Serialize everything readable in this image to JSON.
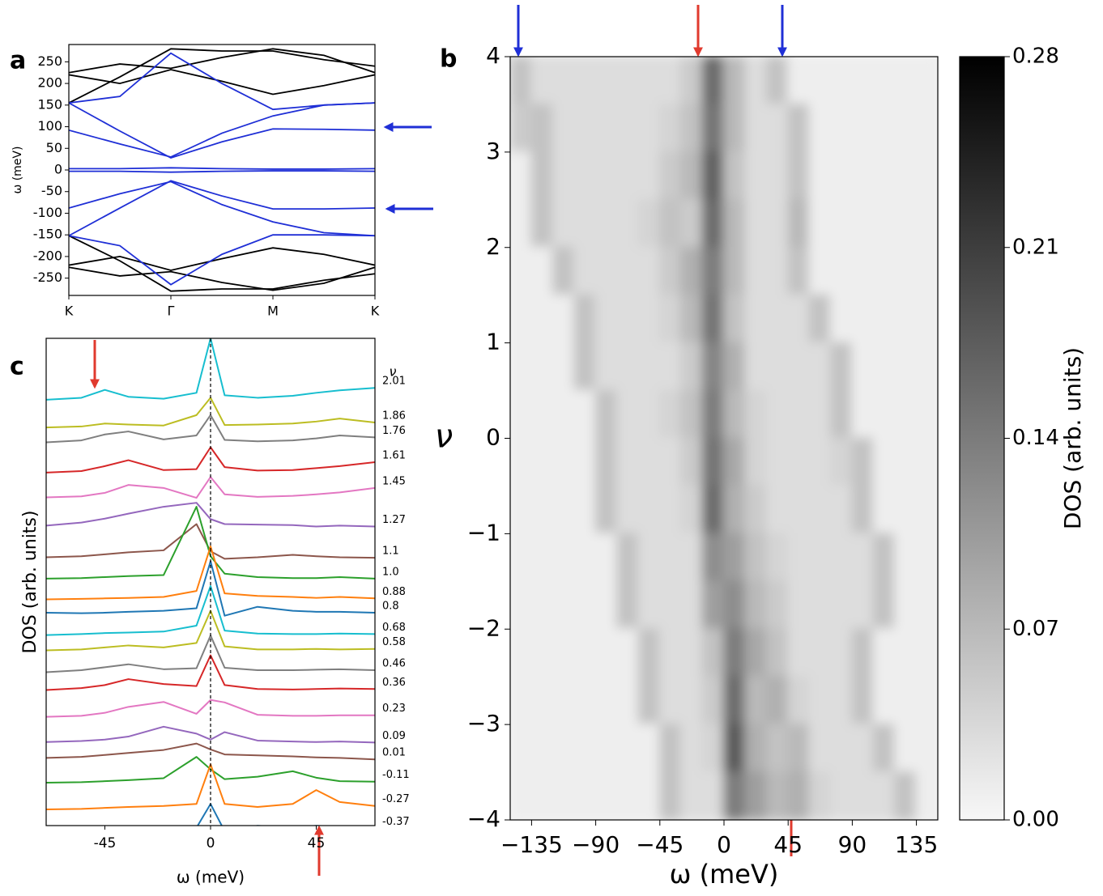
{
  "chart_data": [
    {
      "type": "line",
      "panel_label": "a",
      "ylabel": "ω (meV)",
      "x": [
        0,
        0.5,
        1,
        1.5,
        2,
        2.5,
        3
      ],
      "xlim": [
        0,
        3
      ],
      "xticks": [
        {
          "value": 0,
          "label": "K"
        },
        {
          "value": 1,
          "label": "Γ"
        },
        {
          "value": 2,
          "label": "M"
        },
        {
          "value": 3,
          "label": "K"
        }
      ],
      "ylim": [
        -290,
        290
      ],
      "yticks": [
        -250,
        -200,
        -150,
        -100,
        -50,
        0,
        50,
        100,
        150,
        200,
        250
      ],
      "series": [
        {
          "color": "#000000",
          "values": [
            225,
            245,
            235,
            260,
            280,
            265,
            225
          ]
        },
        {
          "color": "#000000",
          "values": [
            220,
            200,
            232,
            205,
            175,
            195,
            220
          ]
        },
        {
          "color": "#000000",
          "values": [
            155,
            215,
            280,
            275,
            275,
            255,
            240
          ]
        },
        {
          "color": "#000000",
          "values": [
            -225,
            -245,
            -235,
            -260,
            -278,
            -262,
            -225
          ]
        },
        {
          "color": "#000000",
          "values": [
            -220,
            -200,
            -232,
            -205,
            -180,
            -195,
            -220
          ]
        },
        {
          "color": "#000000",
          "values": [
            -152,
            -210,
            -280,
            -275,
            -275,
            -255,
            -240
          ]
        },
        {
          "color": "#1f2fd6",
          "values": [
            3,
            3,
            5,
            3,
            2,
            2,
            3
          ]
        },
        {
          "color": "#1f2fd6",
          "values": [
            -3,
            -3,
            -5,
            -3,
            -2,
            -2,
            -3
          ]
        },
        {
          "color": "#1f2fd6",
          "values": [
            155,
            90,
            28,
            65,
            95,
            94,
            92
          ]
        },
        {
          "color": "#1f2fd6",
          "values": [
            -152,
            -88,
            -25,
            -60,
            -90,
            -90,
            -88
          ]
        },
        {
          "color": "#1f2fd6",
          "values": [
            92,
            60,
            30,
            85,
            125,
            150,
            155
          ]
        },
        {
          "color": "#1f2fd6",
          "values": [
            -88,
            -55,
            -27,
            -80,
            -120,
            -145,
            -152
          ]
        },
        {
          "color": "#1f2fd6",
          "values": [
            155,
            170,
            270,
            200,
            140,
            150,
            155
          ]
        },
        {
          "color": "#1f2fd6",
          "values": [
            -152,
            -175,
            -265,
            -195,
            -150,
            -150,
            -152
          ]
        }
      ]
    },
    {
      "type": "heatmap",
      "panel_label": "b",
      "xlabel": "ω (meV)",
      "ylabel": "ν",
      "colorbar_label": "DOS (arb. units)",
      "xlim": [
        -150,
        150
      ],
      "ylim": [
        -4,
        4
      ],
      "zlim": [
        0,
        0.28
      ],
      "xticks": [
        {
          "value": -135,
          "label": "−135"
        },
        {
          "value": -90,
          "label": "−90"
        },
        {
          "value": -45,
          "label": "−45"
        },
        0,
        45,
        90,
        135
      ],
      "yticks": [
        {
          "value": -4,
          "label": "−4"
        },
        {
          "value": -3,
          "label": "−3"
        },
        {
          "value": -2,
          "label": "−2"
        },
        {
          "value": -1,
          "label": "−1"
        },
        0,
        1,
        2,
        3,
        4
      ],
      "zticks": [
        {
          "value": 0,
          "label": "0.00"
        },
        0.07,
        0.14,
        0.21,
        0.28
      ],
      "x": [
        -142.5,
        -127.5,
        -112.5,
        -97.5,
        -82.5,
        -67.5,
        -52.5,
        -37.5,
        -22.5,
        -7.5,
        7.5,
        22.5,
        37.5,
        52.5,
        67.5,
        82.5,
        97.5,
        112.5,
        127.5,
        142.5
      ],
      "y": [
        3.75,
        3.25,
        2.75,
        2.25,
        1.75,
        1.25,
        0.75,
        0.25,
        -0.25,
        -0.75,
        -1.25,
        -1.75,
        -2.25,
        -2.75,
        -3.25,
        -3.75
      ],
      "z": [
        [
          0.06,
          0.03,
          0.03,
          0.03,
          0.03,
          0.03,
          0.03,
          0.03,
          0.05,
          0.16,
          0.07,
          0.03,
          0.06,
          0.01,
          0.01,
          0.01,
          0.01,
          0.01,
          0.01,
          0.01
        ],
        [
          0.05,
          0.06,
          0.03,
          0.03,
          0.03,
          0.03,
          0.03,
          0.04,
          0.06,
          0.15,
          0.07,
          0.03,
          0.03,
          0.06,
          0.01,
          0.01,
          0.01,
          0.01,
          0.01,
          0.01
        ],
        [
          0.01,
          0.06,
          0.03,
          0.03,
          0.03,
          0.03,
          0.03,
          0.05,
          0.07,
          0.17,
          0.06,
          0.03,
          0.03,
          0.06,
          0.01,
          0.01,
          0.01,
          0.01,
          0.01,
          0.01
        ],
        [
          0.01,
          0.06,
          0.03,
          0.03,
          0.03,
          0.03,
          0.04,
          0.06,
          0.05,
          0.16,
          0.07,
          0.03,
          0.03,
          0.07,
          0.01,
          0.01,
          0.01,
          0.01,
          0.01,
          0.01
        ],
        [
          0.01,
          0.01,
          0.06,
          0.03,
          0.03,
          0.03,
          0.03,
          0.05,
          0.08,
          0.14,
          0.07,
          0.03,
          0.03,
          0.06,
          0.01,
          0.01,
          0.01,
          0.01,
          0.01,
          0.01
        ],
        [
          0.01,
          0.01,
          0.01,
          0.06,
          0.03,
          0.03,
          0.03,
          0.04,
          0.07,
          0.15,
          0.06,
          0.03,
          0.03,
          0.03,
          0.06,
          0.01,
          0.01,
          0.01,
          0.01,
          0.01
        ],
        [
          0.01,
          0.01,
          0.01,
          0.06,
          0.03,
          0.03,
          0.03,
          0.03,
          0.05,
          0.13,
          0.08,
          0.03,
          0.03,
          0.03,
          0.03,
          0.06,
          0.01,
          0.01,
          0.01,
          0.01
        ],
        [
          0.01,
          0.01,
          0.01,
          0.01,
          0.06,
          0.03,
          0.03,
          0.04,
          0.06,
          0.14,
          0.07,
          0.04,
          0.03,
          0.03,
          0.03,
          0.06,
          0.01,
          0.01,
          0.01,
          0.01
        ],
        [
          0.01,
          0.01,
          0.01,
          0.01,
          0.06,
          0.03,
          0.03,
          0.03,
          0.05,
          0.15,
          0.09,
          0.04,
          0.03,
          0.03,
          0.03,
          0.04,
          0.06,
          0.01,
          0.01,
          0.01
        ],
        [
          0.01,
          0.01,
          0.01,
          0.01,
          0.06,
          0.03,
          0.03,
          0.03,
          0.04,
          0.16,
          0.08,
          0.05,
          0.03,
          0.03,
          0.03,
          0.03,
          0.06,
          0.01,
          0.01,
          0.01
        ],
        [
          0.01,
          0.01,
          0.01,
          0.01,
          0.01,
          0.06,
          0.03,
          0.03,
          0.03,
          0.12,
          0.1,
          0.06,
          0.04,
          0.03,
          0.03,
          0.03,
          0.03,
          0.06,
          0.01,
          0.01
        ],
        [
          0.01,
          0.01,
          0.01,
          0.01,
          0.01,
          0.06,
          0.03,
          0.03,
          0.03,
          0.1,
          0.12,
          0.07,
          0.05,
          0.03,
          0.03,
          0.03,
          0.03,
          0.06,
          0.01,
          0.01
        ],
        [
          0.01,
          0.01,
          0.01,
          0.01,
          0.01,
          0.01,
          0.06,
          0.03,
          0.03,
          0.06,
          0.14,
          0.09,
          0.06,
          0.03,
          0.03,
          0.03,
          0.06,
          0.01,
          0.01,
          0.01
        ],
        [
          0.01,
          0.01,
          0.01,
          0.01,
          0.01,
          0.01,
          0.06,
          0.03,
          0.03,
          0.05,
          0.16,
          0.07,
          0.08,
          0.04,
          0.03,
          0.03,
          0.06,
          0.01,
          0.01,
          0.01
        ],
        [
          0.01,
          0.01,
          0.01,
          0.01,
          0.01,
          0.01,
          0.01,
          0.06,
          0.03,
          0.04,
          0.18,
          0.08,
          0.06,
          0.07,
          0.03,
          0.03,
          0.03,
          0.06,
          0.01,
          0.01
        ],
        [
          0.01,
          0.01,
          0.01,
          0.01,
          0.01,
          0.01,
          0.01,
          0.06,
          0.03,
          0.03,
          0.14,
          0.1,
          0.07,
          0.08,
          0.04,
          0.03,
          0.03,
          0.03,
          0.06,
          0.01
        ]
      ]
    },
    {
      "type": "waterfall",
      "panel_label": "c",
      "xlabel": "ω (meV)",
      "ylabel": "DOS (arb. units)",
      "legend_title": "ν",
      "xlim": [
        -70,
        70
      ],
      "xticks": [
        -45,
        0,
        45
      ],
      "ylim": [
        0,
        100
      ],
      "vline": 0,
      "x": [
        -70,
        -55,
        -45,
        -35,
        -20,
        -6,
        0,
        6,
        20,
        35,
        45,
        55,
        70
      ],
      "series": [
        {
          "name": "2.01",
          "color": "#17becf",
          "values": [
            87.6,
            88.0,
            89.6,
            88.2,
            87.8,
            89.0,
            100,
            88.5,
            88.0,
            88.4,
            89.0,
            89.5,
            90.0
          ]
        },
        {
          "name": "1.86",
          "color": "#bcbd22",
          "values": [
            82.0,
            82.2,
            82.8,
            82.6,
            82.4,
            84.5,
            88,
            82.5,
            82.6,
            82.8,
            83.2,
            83.8,
            83.0
          ]
        },
        {
          "name": "1.76",
          "color": "#7f7f7f",
          "values": [
            79.0,
            79.4,
            80.6,
            81.2,
            79.6,
            80.4,
            84.5,
            79.5,
            79.2,
            79.4,
            79.8,
            80.4,
            80.0
          ]
        },
        {
          "name": "1.61",
          "color": "#d62728",
          "values": [
            72.9,
            73.2,
            74.2,
            75.4,
            73.4,
            73.6,
            78.0,
            74.0,
            73.3,
            73.4,
            73.8,
            74.2,
            75.0
          ]
        },
        {
          "name": "1.45",
          "color": "#e377c2",
          "values": [
            67.9,
            68.1,
            68.8,
            70.4,
            69.8,
            67.8,
            72.0,
            68.5,
            68.0,
            68.2,
            68.5,
            68.9,
            69.8
          ]
        },
        {
          "name": "1.27",
          "color": "#9467bd",
          "values": [
            62.2,
            62.8,
            63.6,
            64.6,
            66.0,
            66.8,
            63.5,
            62.5,
            62.4,
            62.3,
            62.0,
            62.2,
            62.0
          ]
        },
        {
          "name": "1.1",
          "color": "#8c564b",
          "values": [
            55.8,
            56.0,
            56.4,
            56.8,
            57.2,
            62.5,
            57.0,
            55.5,
            55.8,
            56.3,
            56.0,
            55.8,
            55.7
          ]
        },
        {
          "name": "1.0",
          "color": "#2ca02c",
          "values": [
            51.5,
            51.6,
            51.8,
            52.0,
            52.2,
            66.0,
            56,
            52.5,
            51.8,
            51.6,
            51.6,
            51.8,
            51.5
          ]
        },
        {
          "name": "0.88",
          "color": "#ff7f0e",
          "values": [
            47.3,
            47.4,
            47.5,
            47.6,
            47.8,
            49,
            58,
            48.5,
            48.0,
            47.8,
            47.6,
            47.8,
            47.5
          ]
        },
        {
          "name": "0.8",
          "color": "#1f77b4",
          "values": [
            44.6,
            44.5,
            44.6,
            44.8,
            45.0,
            45.5,
            55,
            44.0,
            45.8,
            45.0,
            44.8,
            44.8,
            44.6
          ]
        },
        {
          "name": "0.68",
          "color": "#17becf",
          "values": [
            40.1,
            40.3,
            40.5,
            40.6,
            40.8,
            42,
            50,
            41.0,
            40.4,
            40.3,
            40.3,
            40.4,
            40.3
          ]
        },
        {
          "name": "0.58",
          "color": "#bcbd22",
          "values": [
            37.0,
            37.2,
            37.6,
            38.0,
            37.6,
            38.5,
            45,
            37.8,
            37.2,
            37.2,
            37.3,
            37.2,
            37.3
          ]
        },
        {
          "name": "0.46",
          "color": "#7f7f7f",
          "values": [
            32.6,
            33.0,
            33.6,
            34.2,
            33.2,
            33.4,
            40,
            33.5,
            33.0,
            33.0,
            33.1,
            33.2,
            33.0
          ]
        },
        {
          "name": "0.36",
          "color": "#d62728",
          "values": [
            29.0,
            29.4,
            30.0,
            31.2,
            30.2,
            29.8,
            36,
            30.0,
            29.2,
            29.1,
            29.2,
            29.3,
            29.2
          ]
        },
        {
          "name": "0.23",
          "color": "#e377c2",
          "values": [
            23.6,
            23.8,
            24.4,
            25.6,
            26.6,
            24.2,
            27,
            26.5,
            24.0,
            23.8,
            23.8,
            23.9,
            23.9
          ]
        },
        {
          "name": "0.09",
          "color": "#9467bd",
          "values": [
            18.5,
            18.7,
            19.0,
            19.6,
            21.6,
            20.2,
            19.0,
            20.5,
            18.8,
            18.6,
            18.5,
            18.6,
            18.4
          ]
        },
        {
          "name": "0.01",
          "color": "#8c564b",
          "values": [
            15.3,
            15.5,
            15.9,
            16.3,
            16.9,
            18.2,
            17.0,
            16.0,
            15.8,
            15.6,
            15.4,
            15.3,
            15.0
          ]
        },
        {
          "name": "-0.11",
          "color": "#2ca02c",
          "values": [
            10.3,
            10.4,
            10.6,
            10.8,
            11.2,
            15.5,
            13.0,
            11.0,
            11.5,
            12.6,
            11.3,
            10.6,
            10.5
          ]
        },
        {
          "name": "-0.27",
          "color": "#ff7f0e",
          "values": [
            4.9,
            5.0,
            5.2,
            5.4,
            5.6,
            6.0,
            14.0,
            6.0,
            5.4,
            6.0,
            8.8,
            6.4,
            5.6
          ]
        },
        {
          "name": "-0.37",
          "color": "#1f77b4",
          "values": [
            0.9,
            1.0,
            1.4,
            1.2,
            1.0,
            1.2,
            6.0,
            0.5,
            1.6,
            1.2,
            1.6,
            1.4,
            1.1
          ]
        }
      ]
    }
  ]
}
